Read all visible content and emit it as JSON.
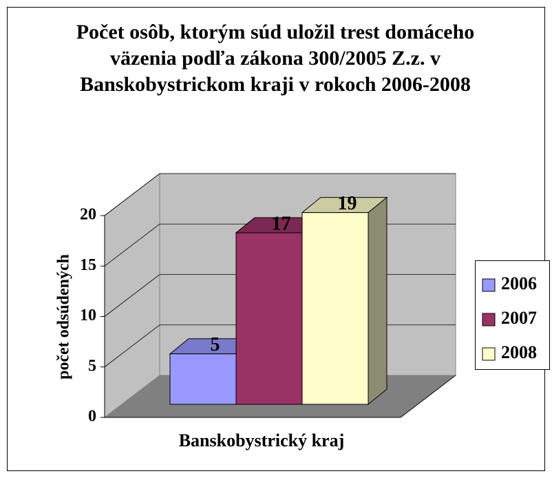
{
  "chart_data": {
    "type": "bar3d",
    "title": "Počet osôb, ktorým súd uložil trest domáceho väzenia podľa zákona 300/2005 Z.z. v Banskobystrickom kraji v rokoch 2006-2008",
    "y_label": "počet odsúdených",
    "categories": [
      "Banskobystrický kraj"
    ],
    "series": [
      {
        "name": "2006",
        "color": "#9999ff",
        "values": [
          5
        ]
      },
      {
        "name": "2007",
        "color": "#993366",
        "values": [
          17
        ]
      },
      {
        "name": "2008",
        "color": "#ffffcc",
        "values": [
          19
        ]
      }
    ],
    "ylim": [
      0,
      20
    ],
    "yticks": [
      0,
      5,
      10,
      15,
      20
    ],
    "grid": true,
    "legend": "right"
  }
}
